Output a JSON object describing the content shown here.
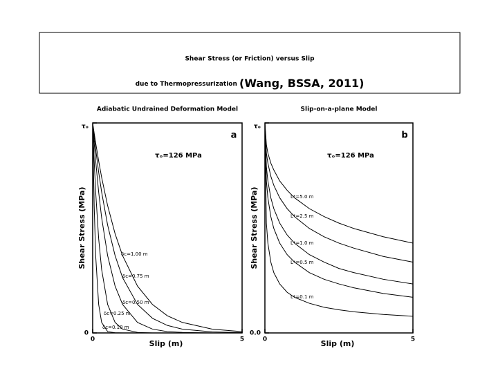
{
  "header": {
    "title_line1": "Shear Stress (or Friction) versus Slip",
    "title_line2": "due to Thermopressurization",
    "citation": "(Wang, BSSA, 2011)"
  },
  "chart_data": [
    {
      "type": "line",
      "title": "Adiabatic Undrained Deformation Model",
      "panel_label": "a",
      "annotation": "τₒ=126 MPa",
      "xlabel": "Slip (m)",
      "ylabel": "Shear Stress (MPa)",
      "x": [
        0,
        0.05,
        0.1,
        0.2,
        0.3,
        0.5,
        0.75,
        1,
        1.5,
        2,
        2.5,
        3,
        4,
        5
      ],
      "xlim": [
        0,
        5
      ],
      "ylim": [
        0,
        126
      ],
      "xticks": [
        0,
        5
      ],
      "yticks": [
        0,
        {
          "value": 126,
          "label": "τₒ"
        }
      ],
      "series": [
        {
          "name": "δc=1.00 m",
          "color": "#000000",
          "values": [
            126,
            119.9,
            114.0,
            103.2,
            93.3,
            76.4,
            59.5,
            46.4,
            28.1,
            17.1,
            10.3,
            6.3,
            2.3,
            0.8
          ]
        },
        {
          "name": "δc=0.75 m",
          "color": "#000000",
          "values": [
            126,
            117.9,
            110.3,
            96.5,
            84.5,
            64.7,
            46.4,
            33.2,
            17.1,
            8.8,
            4.5,
            2.3,
            0.6,
            0.2
          ]
        },
        {
          "name": "δc=0.50 m",
          "color": "#000000",
          "values": [
            126,
            114.0,
            103.2,
            84.5,
            69.1,
            46.4,
            28.1,
            17.1,
            6.3,
            2.3,
            0.8,
            0.3,
            0,
            0
          ]
        },
        {
          "name": "δc=0.25 m",
          "color": "#000000",
          "values": [
            126,
            103.2,
            84.5,
            56.6,
            38.0,
            17.1,
            6.3,
            2.3,
            0.3,
            0,
            0,
            0,
            0,
            0
          ]
        },
        {
          "name": "δc=0.10 m",
          "color": "#000000",
          "values": [
            126,
            76.4,
            46.4,
            17.1,
            6.3,
            0.8,
            0.1,
            0,
            0,
            0,
            0,
            0,
            0,
            0
          ]
        }
      ]
    },
    {
      "type": "line",
      "title": "Slip-on-a-plane Model",
      "panel_label": "b",
      "annotation": "τₒ=126 MPa",
      "xlabel": "Slip (m)",
      "ylabel": "Shear Stress (MPa)",
      "x": [
        0,
        0.05,
        0.1,
        0.2,
        0.3,
        0.5,
        0.75,
        1,
        1.5,
        2,
        2.5,
        3,
        4,
        5
      ],
      "xlim": [
        0,
        5
      ],
      "ylim": [
        0,
        126
      ],
      "xticks": [
        0,
        5
      ],
      "yticks": [
        {
          "value": 0,
          "label": "0.0"
        },
        {
          "value": 126,
          "label": "τₒ"
        }
      ],
      "series": [
        {
          "name": "L*=5.0 m",
          "color": "#000000",
          "values": [
            126,
            113.0,
            107.9,
            101.9,
            97.8,
            91.2,
            85.6,
            81.1,
            74.6,
            69.8,
            65.9,
            62.7,
            57.7,
            53.9
          ]
        },
        {
          "name": "L*=2.5 m",
          "color": "#000000",
          "values": [
            126,
            107.9,
            101.9,
            94.0,
            88.6,
            81.1,
            74.6,
            69.8,
            62.7,
            57.7,
            53.9,
            50.9,
            45.9,
            42.5
          ]
        },
        {
          "name": "L*=1.0 m",
          "color": "#000000",
          "values": [
            126,
            99.8,
            91.2,
            81.1,
            74.6,
            65.9,
            58.8,
            53.9,
            47.0,
            42.5,
            38.7,
            36.2,
            32.2,
            29.4
          ]
        },
        {
          "name": "L*=0.5 m",
          "color": "#000000",
          "values": [
            126,
            91.2,
            81.1,
            69.8,
            62.7,
            53.9,
            47.0,
            42.5,
            36.2,
            32.2,
            29.4,
            27.1,
            23.7,
            21.4
          ]
        },
        {
          "name": "L*=0.1 m",
          "color": "#000000",
          "values": [
            126,
            65.9,
            53.9,
            42.5,
            36.2,
            29.4,
            24.4,
            21.4,
            17.8,
            15.4,
            13.9,
            12.7,
            11.1,
            10.0
          ]
        }
      ]
    }
  ]
}
